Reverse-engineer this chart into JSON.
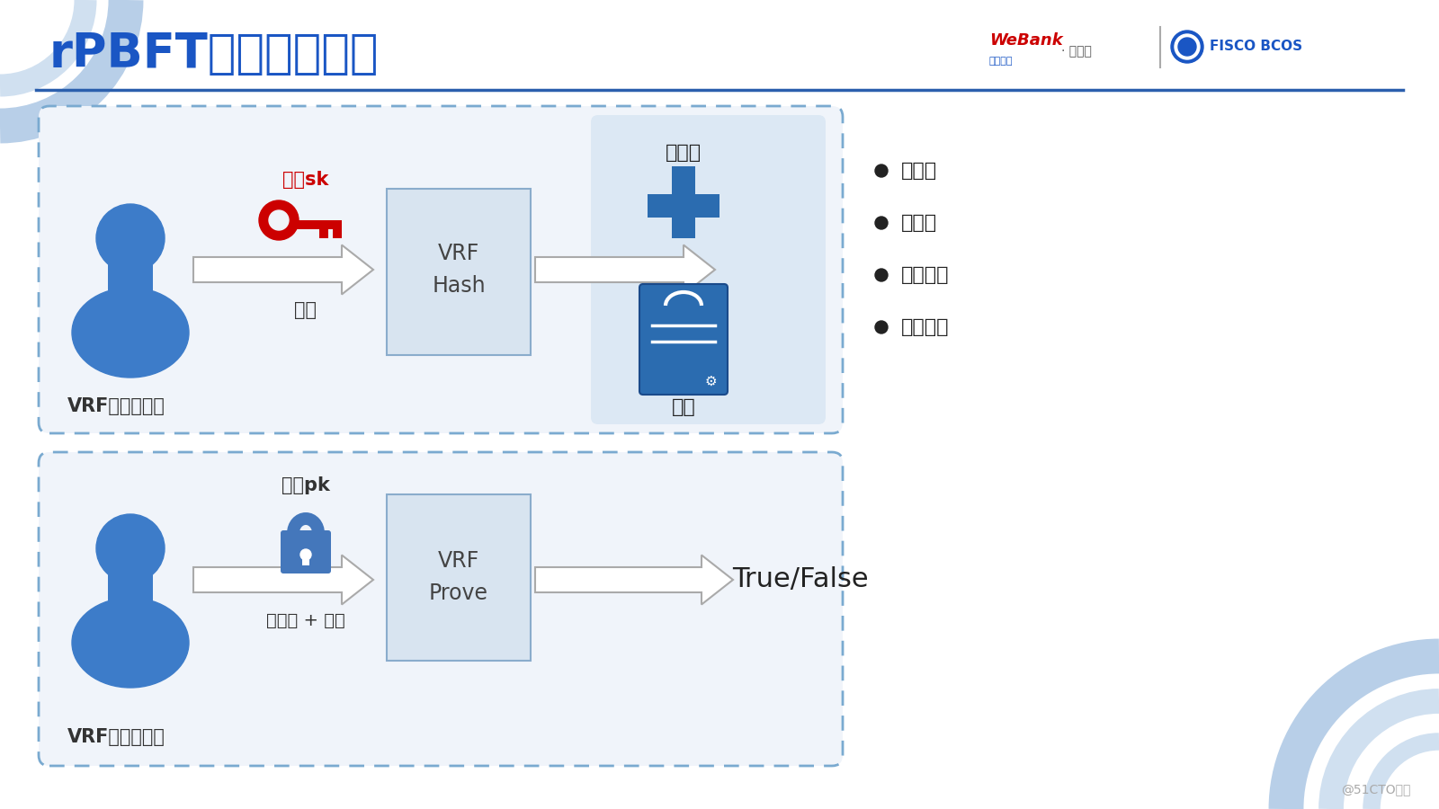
{
  "title": "rPBFT共识节点选取",
  "title_color": "#1a56c4",
  "title_fontsize": 38,
  "bg_color": "#ffffff",
  "header_line_color": "#2b5fad",
  "box1_label": "VRF\nHash",
  "box2_label": "VRF\nProve",
  "vrf_gen_label": "VRF随机数生成",
  "vrf_verify_label": "VRF随机数验证",
  "input_label": "输入",
  "private_key_label": "私钥sk",
  "public_key_label": "公钥pk",
  "random_num_label": "随机数",
  "proof_label": "证明",
  "random_proof_label": "随机数 + 证明",
  "true_false_label": "True/False",
  "bullet_items": [
    "可验证",
    "唯一性",
    "防碰撞性",
    "伪随机性"
  ],
  "bullet_color": "#222222",
  "webank_red": "#cc0000",
  "webank_blue": "#1a56c4",
  "arrow_color": "#888888",
  "box_fill": "#d8e4f0",
  "box_border": "#9ab4cc",
  "outer_box_fill": "#f0f4fa",
  "outer_box_border": "#7aaad0",
  "right_shade_fill": "#dce8f4",
  "person_color": "#3d7cc9",
  "key_color": "#cc0000",
  "plus_color": "#2b6cb0",
  "card_color": "#2b6cb0",
  "bottom_text": "@51CTO博客",
  "bottom_text_color": "#aaaaaa",
  "deco_color1": "#b8cfe8",
  "deco_color2": "#d0e0f0"
}
